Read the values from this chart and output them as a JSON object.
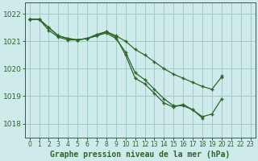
{
  "title": "Graphe pression niveau de la mer (hPa)",
  "background_color": "#ceeaea",
  "grid_color": "#a0ccc8",
  "line_color": "#2d6628",
  "marker_color": "#2d6628",
  "xlim": [
    -0.5,
    23.5
  ],
  "ylim": [
    1017.5,
    1022.4
  ],
  "yticks": [
    1018,
    1019,
    1020,
    1021,
    1022
  ],
  "xticks": [
    0,
    1,
    2,
    3,
    4,
    5,
    6,
    7,
    8,
    9,
    10,
    11,
    12,
    13,
    14,
    15,
    16,
    17,
    18,
    19,
    20,
    21,
    22,
    23
  ],
  "series": [
    [
      1021.8,
      1021.8,
      1021.5,
      1021.2,
      1021.1,
      1021.05,
      1021.1,
      1021.2,
      1021.35,
      1021.2,
      1021.0,
      1020.7,
      1020.5,
      1020.25,
      1020.0,
      1019.8,
      1019.65,
      1019.5,
      1019.35,
      1019.25,
      1019.7,
      null,
      null,
      null
    ],
    [
      1021.8,
      1021.8,
      1021.5,
      1021.2,
      1021.1,
      1021.05,
      1021.1,
      1021.2,
      1021.3,
      1021.1,
      1020.6,
      1019.85,
      1019.6,
      1019.25,
      1018.9,
      1018.65,
      1018.65,
      1018.5,
      1018.25,
      1018.35,
      1018.9,
      null,
      null,
      null
    ],
    [
      1021.8,
      1021.8,
      1021.4,
      1021.15,
      1021.05,
      1021.05,
      1021.1,
      1021.25,
      1021.35,
      1021.15,
      1020.5,
      1019.65,
      1019.45,
      1019.1,
      1018.75,
      1018.6,
      1018.7,
      1018.5,
      1018.2,
      null,
      1019.75,
      null,
      null,
      null
    ]
  ],
  "spine_color": "#2d6628",
  "tick_color": "#2d6628",
  "xlabel_fontsize": 7.0,
  "ytick_fontsize": 6.5,
  "xtick_fontsize": 5.5
}
